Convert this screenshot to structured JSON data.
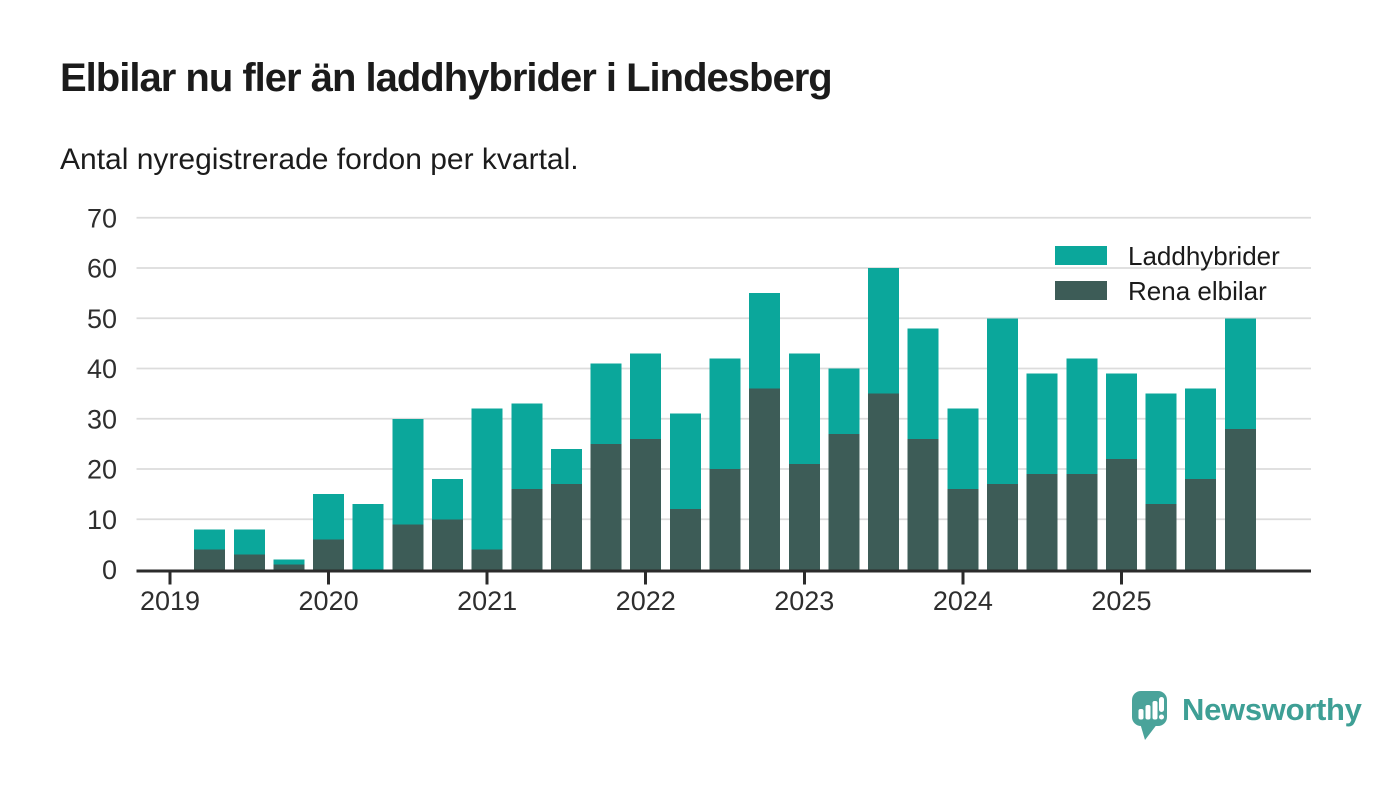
{
  "header": {
    "title": "Elbilar nu fler än laddhybrider i Lindesberg",
    "subtitle": "Antal nyregistrerade fordon per kvartal."
  },
  "legend": [
    {
      "label": "Laddhybrider",
      "color": "#0ba79b"
    },
    {
      "label": "Rena elbilar",
      "color": "#3d5c57"
    }
  ],
  "branding": {
    "name": "Newsworthy",
    "color": "#3e9f95",
    "icon": "newsworthy-speech-bubble-chart-icon",
    "icon_color": "#4aa39a"
  },
  "chart_data": {
    "type": "bar",
    "stacked": true,
    "title": "Elbilar nu fler än laddhybrider i Lindesberg",
    "subtitle": "Antal nyregistrerade fordon per kvartal.",
    "xlabel": "",
    "ylabel": "",
    "ylim": [
      0,
      70
    ],
    "yticks": [
      0,
      10,
      20,
      30,
      40,
      50,
      60,
      70
    ],
    "grid": "horizontal",
    "legend_position": "top-right",
    "xticks": [
      "2019",
      "2020",
      "2021",
      "2022",
      "2023",
      "2024",
      "2025"
    ],
    "x": [
      "2019 Q1",
      "2019 Q2",
      "2019 Q3",
      "2019 Q4",
      "2020 Q1",
      "2020 Q2",
      "2020 Q3",
      "2020 Q4",
      "2021 Q1",
      "2021 Q2",
      "2021 Q3",
      "2021 Q4",
      "2022 Q1",
      "2022 Q2",
      "2022 Q3",
      "2022 Q4",
      "2023 Q1",
      "2023 Q2",
      "2023 Q3",
      "2023 Q4",
      "2024 Q1",
      "2024 Q2",
      "2024 Q3",
      "2024 Q4",
      "2025 Q1",
      "2025 Q2",
      "2025 Q3",
      "2025 Q4"
    ],
    "series": [
      {
        "name": "Rena elbilar",
        "color": "#3d5c57",
        "stack_order": "bottom",
        "values": [
          0,
          4,
          3,
          1,
          6,
          0,
          9,
          10,
          4,
          16,
          17,
          25,
          26,
          12,
          20,
          36,
          21,
          27,
          35,
          26,
          16,
          17,
          19,
          19,
          22,
          13,
          18,
          28
        ]
      },
      {
        "name": "Laddhybrider",
        "color": "#0ba79b",
        "stack_order": "top",
        "values": [
          0,
          4,
          5,
          1,
          9,
          13,
          21,
          8,
          28,
          17,
          7,
          16,
          17,
          19,
          22,
          19,
          22,
          13,
          25,
          22,
          16,
          33,
          20,
          23,
          17,
          22,
          18,
          22
        ]
      }
    ],
    "stack_totals": [
      0,
      8,
      8,
      2,
      15,
      13,
      30,
      18,
      32,
      33,
      24,
      41,
      43,
      31,
      42,
      55,
      43,
      40,
      60,
      48,
      32,
      50,
      39,
      42,
      39,
      35,
      36,
      50
    ]
  },
  "chart_style": {
    "grid_color": "#dcdcdc",
    "axis_color": "#2b2b2b",
    "tick_label_color": "#2e2e2e",
    "background": "#ffffff"
  }
}
